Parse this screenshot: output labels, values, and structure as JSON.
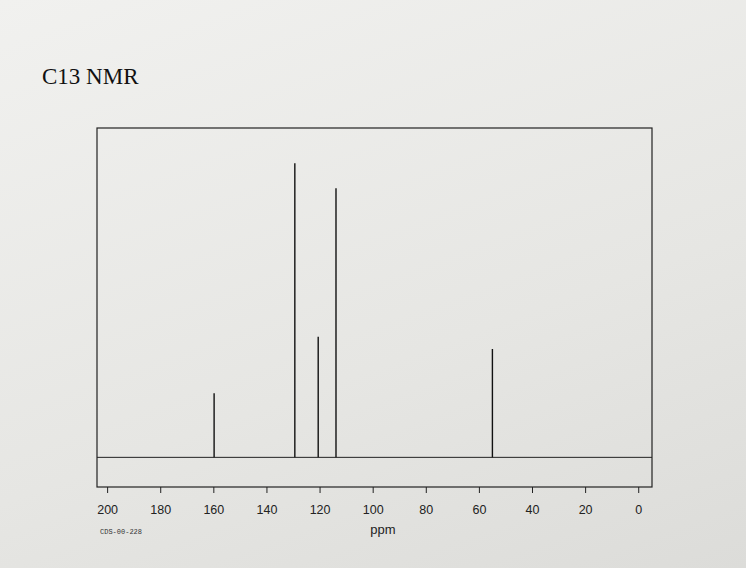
{
  "chart_data": {
    "type": "stick",
    "title": "C13 NMR",
    "x_label": "ppm",
    "footnote": "CDS-00-228",
    "x": [
      159.9,
      129.5,
      120.7,
      114.0,
      55.1
    ],
    "values": [
      19.5,
      89.3,
      36.6,
      81.7,
      32.9
    ],
    "color": "#111111",
    "xlim": [
      204,
      -5
    ],
    "xticks": [
      200,
      180,
      160,
      140,
      120,
      100,
      80,
      60,
      40,
      20,
      0
    ],
    "ylim": [
      -9,
      100
    ],
    "tick_labels": "x",
    "grid": false
  }
}
